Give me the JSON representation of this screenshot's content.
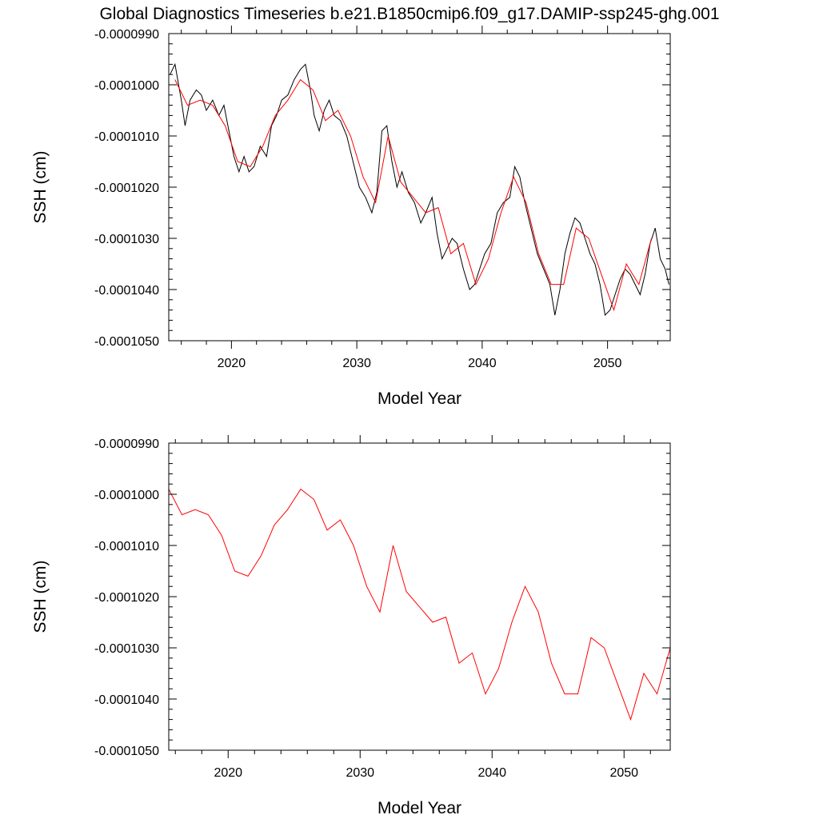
{
  "figure": {
    "title": "Global Diagnostics Timeseries b.e21.B1850cmip6.f09_g17.DAMIP-ssp245-ghg.001"
  },
  "colors": {
    "annual": "#ff0000",
    "monthly": "#000000",
    "axis": "#000000"
  },
  "chart_data": [
    {
      "type": "line",
      "xlabel": "Model Year",
      "ylabel": "SSH (cm)",
      "xlim": [
        2015,
        2055
      ],
      "ylim": [
        -0.000105,
        -9.9e-05
      ],
      "x_ticks": [
        2020,
        2030,
        2040,
        2050
      ],
      "x_tick_labels": [
        "2020",
        "2030",
        "2040",
        "2050"
      ],
      "y_ticks": [
        -9.9e-05,
        -0.0001,
        -0.000101,
        -0.000102,
        -0.000103,
        -0.000104,
        -0.000105
      ],
      "y_tick_labels": [
        "-0.0000990",
        "-0.0001000",
        "-0.0001010",
        "-0.0001020",
        "-0.0001030",
        "-0.0001040",
        "-0.0001050"
      ],
      "series": [
        {
          "color": "#000000",
          "x": [
            2015.1,
            2015.5,
            2016.0,
            2016.3,
            2016.7,
            2017.2,
            2017.6,
            2018.0,
            2018.5,
            2019.0,
            2019.4,
            2019.8,
            2020.2,
            2020.6,
            2021.0,
            2021.4,
            2021.8,
            2022.3,
            2022.8,
            2023.2,
            2023.6,
            2024.0,
            2024.5,
            2025.0,
            2025.5,
            2025.9,
            2026.3,
            2026.6,
            2027.0,
            2027.4,
            2027.8,
            2028.2,
            2028.7,
            2029.2,
            2029.7,
            2030.2,
            2030.7,
            2031.2,
            2031.6,
            2032.0,
            2032.4,
            2032.8,
            2033.2,
            2033.6,
            2034.1,
            2034.6,
            2035.1,
            2035.5,
            2036.0,
            2036.4,
            2036.8,
            2037.2,
            2037.6,
            2038.0,
            2038.5,
            2039.0,
            2039.4,
            2039.8,
            2040.2,
            2040.7,
            2041.2,
            2041.7,
            2042.2,
            2042.6,
            2043.0,
            2043.4,
            2043.9,
            2044.4,
            2044.9,
            2045.4,
            2045.8,
            2046.2,
            2046.6,
            2047.0,
            2047.4,
            2047.8,
            2048.2,
            2048.6,
            2049.0,
            2049.4,
            2049.8,
            2050.2,
            2050.6,
            2051.0,
            2051.4,
            2051.8,
            2052.2,
            2052.6,
            2053.0,
            2053.4,
            2053.8,
            2054.2,
            2054.6,
            2054.9
          ],
          "values": [
            -9.98e-05,
            -9.96e-05,
            -0.0001003,
            -0.0001008,
            -0.0001003,
            -0.0001001,
            -0.0001002,
            -0.0001005,
            -0.0001003,
            -0.0001006,
            -0.0001004,
            -0.0001009,
            -0.0001014,
            -0.0001017,
            -0.0001014,
            -0.0001017,
            -0.0001016,
            -0.0001012,
            -0.0001014,
            -0.0001008,
            -0.0001006,
            -0.0001003,
            -0.0001002,
            -9.99e-05,
            -9.97e-05,
            -9.96e-05,
            -0.0001001,
            -0.0001006,
            -0.0001009,
            -0.0001005,
            -0.0001003,
            -0.0001006,
            -0.0001007,
            -0.000101,
            -0.0001015,
            -0.000102,
            -0.0001022,
            -0.0001025,
            -0.0001021,
            -0.0001009,
            -0.0001008,
            -0.0001015,
            -0.000102,
            -0.0001017,
            -0.0001021,
            -0.0001023,
            -0.0001027,
            -0.0001025,
            -0.0001022,
            -0.0001029,
            -0.0001034,
            -0.0001032,
            -0.000103,
            -0.0001031,
            -0.0001036,
            -0.000104,
            -0.0001039,
            -0.0001036,
            -0.0001033,
            -0.0001031,
            -0.0001025,
            -0.0001023,
            -0.0001022,
            -0.0001016,
            -0.0001018,
            -0.0001023,
            -0.0001028,
            -0.0001033,
            -0.0001036,
            -0.0001039,
            -0.0001045,
            -0.000104,
            -0.0001033,
            -0.0001029,
            -0.0001026,
            -0.0001027,
            -0.000103,
            -0.0001033,
            -0.0001035,
            -0.0001039,
            -0.0001045,
            -0.0001044,
            -0.0001041,
            -0.0001038,
            -0.0001036,
            -0.0001037,
            -0.0001039,
            -0.0001041,
            -0.0001037,
            -0.0001031,
            -0.0001028,
            -0.0001034,
            -0.0001036,
            -0.0001039
          ]
        },
        {
          "color": "#ff0000",
          "x": [
            2015.5,
            2016.5,
            2017.5,
            2018.5,
            2019.5,
            2020.5,
            2021.5,
            2022.5,
            2023.5,
            2024.5,
            2025.5,
            2026.5,
            2027.5,
            2028.5,
            2029.5,
            2030.5,
            2031.5,
            2032.5,
            2033.5,
            2034.5,
            2035.5,
            2036.5,
            2037.5,
            2038.5,
            2039.5,
            2040.5,
            2041.5,
            2042.5,
            2043.5,
            2044.5,
            2045.5,
            2046.5,
            2047.5,
            2048.5,
            2049.5,
            2050.5,
            2051.5,
            2052.5,
            2053.5
          ],
          "values": [
            -9.99e-05,
            -0.0001004,
            -0.0001003,
            -0.0001004,
            -0.0001008,
            -0.0001015,
            -0.0001016,
            -0.0001012,
            -0.0001006,
            -0.0001003,
            -9.99e-05,
            -0.0001001,
            -0.0001007,
            -0.0001005,
            -0.000101,
            -0.0001018,
            -0.0001023,
            -0.000101,
            -0.0001019,
            -0.0001022,
            -0.0001025,
            -0.0001024,
            -0.0001033,
            -0.0001031,
            -0.0001039,
            -0.0001034,
            -0.0001025,
            -0.0001018,
            -0.0001023,
            -0.0001033,
            -0.0001039,
            -0.0001039,
            -0.0001028,
            -0.000103,
            -0.0001037,
            -0.0001044,
            -0.0001035,
            -0.0001039,
            -0.000103
          ]
        }
      ]
    },
    {
      "type": "line",
      "xlabel": "Model Year",
      "ylabel": "SSH (cm)",
      "xlim": [
        2015.5,
        2053.5
      ],
      "ylim": [
        -0.000105,
        -9.9e-05
      ],
      "x_ticks": [
        2020,
        2030,
        2040,
        2050
      ],
      "x_tick_labels": [
        "2020",
        "2030",
        "2040",
        "2050"
      ],
      "y_ticks": [
        -9.9e-05,
        -0.0001,
        -0.000101,
        -0.000102,
        -0.000103,
        -0.000104,
        -0.000105
      ],
      "y_tick_labels": [
        "-0.0000990",
        "-0.0001000",
        "-0.0001010",
        "-0.0001020",
        "-0.0001030",
        "-0.0001040",
        "-0.0001050"
      ],
      "series": [
        {
          "color": "#ff0000",
          "x": [
            2015.5,
            2016.5,
            2017.5,
            2018.5,
            2019.5,
            2020.5,
            2021.5,
            2022.5,
            2023.5,
            2024.5,
            2025.5,
            2026.5,
            2027.5,
            2028.5,
            2029.5,
            2030.5,
            2031.5,
            2032.5,
            2033.5,
            2034.5,
            2035.5,
            2036.5,
            2037.5,
            2038.5,
            2039.5,
            2040.5,
            2041.5,
            2042.5,
            2043.5,
            2044.5,
            2045.5,
            2046.5,
            2047.5,
            2048.5,
            2049.5,
            2050.5,
            2051.5,
            2052.5,
            2053.5
          ],
          "values": [
            -9.99e-05,
            -0.0001004,
            -0.0001003,
            -0.0001004,
            -0.0001008,
            -0.0001015,
            -0.0001016,
            -0.0001012,
            -0.0001006,
            -0.0001003,
            -9.99e-05,
            -0.0001001,
            -0.0001007,
            -0.0001005,
            -0.000101,
            -0.0001018,
            -0.0001023,
            -0.000101,
            -0.0001019,
            -0.0001022,
            -0.0001025,
            -0.0001024,
            -0.0001033,
            -0.0001031,
            -0.0001039,
            -0.0001034,
            -0.0001025,
            -0.0001018,
            -0.0001023,
            -0.0001033,
            -0.0001039,
            -0.0001039,
            -0.0001028,
            -0.000103,
            -0.0001037,
            -0.0001044,
            -0.0001035,
            -0.0001039,
            -0.000103
          ]
        }
      ]
    }
  ]
}
